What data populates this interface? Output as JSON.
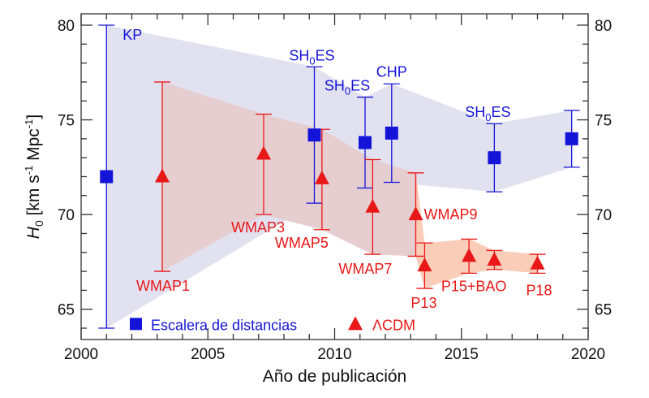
{
  "chart_data": {
    "type": "scatter",
    "title": "",
    "xlabel": "Año de publicación",
    "ylabel_main": "H",
    "ylabel_sub": "0",
    "ylabel_unit_pre": " [km s",
    "ylabel_unit_sup": "-1",
    "ylabel_unit_post": " Mpc",
    "ylabel_unit_sup2": "-1",
    "ylabel_unit_end": "]",
    "xlim": [
      2000,
      2020
    ],
    "ylim": [
      63.4,
      80.6
    ],
    "xticks": [
      2000,
      2005,
      2010,
      2015,
      2020
    ],
    "xtick_labels": [
      "2000",
      "2005",
      "2010",
      "2015",
      "2020"
    ],
    "yticks": [
      65,
      70,
      75,
      80
    ],
    "ytick_labels": [
      "65",
      "70",
      "75",
      "80"
    ],
    "grid": false,
    "legend_position": "bottom",
    "colors": {
      "ladder": "#1414d8",
      "ladder_band": "#e1e1f0",
      "cmb": "#e81818",
      "cmb_band_early": "#e3cdd5",
      "cmb_band_late": "#f9cdb7"
    },
    "series": [
      {
        "name": "Escalera de distancias",
        "marker": "square",
        "points": [
          {
            "x": 2001.0,
            "y": 72.0,
            "low": 64.0,
            "high": 80.0,
            "label": "KP"
          },
          {
            "x": 2009.2,
            "y": 74.2,
            "low": 70.6,
            "high": 77.8,
            "label": "SH0ES"
          },
          {
            "x": 2011.2,
            "y": 73.8,
            "low": 71.4,
            "high": 76.2,
            "label": "SH0ES"
          },
          {
            "x": 2012.25,
            "y": 74.3,
            "low": 71.7,
            "high": 76.9,
            "label": "CHP"
          },
          {
            "x": 2016.3,
            "y": 73.0,
            "low": 71.2,
            "high": 74.8,
            "label": "SH0ES"
          },
          {
            "x": 2019.35,
            "y": 74.0,
            "low": 72.5,
            "high": 75.5,
            "label": ""
          }
        ]
      },
      {
        "name": "ΛCDM",
        "marker": "triangle",
        "points": [
          {
            "x": 2003.2,
            "y": 72.0,
            "low": 67.0,
            "high": 77.0,
            "label": "WMAP1"
          },
          {
            "x": 2007.2,
            "y": 73.2,
            "low": 70.0,
            "high": 75.3,
            "label": "WMAP3"
          },
          {
            "x": 2009.5,
            "y": 71.9,
            "low": 69.2,
            "high": 74.5,
            "label": "WMAP5"
          },
          {
            "x": 2011.5,
            "y": 70.4,
            "low": 67.9,
            "high": 72.9,
            "label": "WMAP7"
          },
          {
            "x": 2013.2,
            "y": 70.0,
            "low": 67.8,
            "high": 72.2,
            "label": "WMAP9"
          },
          {
            "x": 2013.55,
            "y": 67.3,
            "low": 66.1,
            "high": 68.5,
            "label": "P13"
          },
          {
            "x": 2015.3,
            "y": 67.8,
            "low": 66.9,
            "high": 68.7,
            "label": "P15+BAO"
          },
          {
            "x": 2016.3,
            "y": 67.6,
            "low": 67.1,
            "high": 68.1,
            "label": ""
          },
          {
            "x": 2018.0,
            "y": 67.4,
            "low": 66.9,
            "high": 67.9,
            "label": "P18"
          }
        ]
      }
    ],
    "legend": [
      {
        "name": "Escalera de distancias",
        "marker": "square"
      },
      {
        "name": "ΛCDM",
        "marker": "triangle"
      }
    ]
  }
}
